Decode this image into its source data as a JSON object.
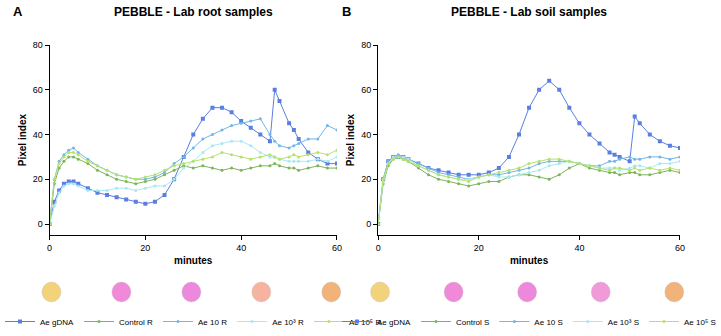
{
  "chart_data": [
    {
      "type": "line",
      "title": "PEBBLE - Lab root samples",
      "annotations": [
        "A"
      ],
      "x_label": "minutes",
      "y_label": "Pixel index",
      "xlim": [
        0,
        60
      ],
      "xticks": [
        0,
        20,
        40,
        60
      ],
      "ylim": [
        -5,
        80
      ],
      "yticks": [
        0,
        20,
        40,
        60,
        80
      ],
      "grid": false,
      "legend": "bottom",
      "x": [
        0,
        1,
        2,
        3,
        4,
        5,
        6,
        8,
        10,
        12,
        14,
        16,
        18,
        20,
        22,
        24,
        26,
        28,
        30,
        32,
        34,
        36,
        38,
        40,
        42,
        44,
        46,
        47,
        48,
        50,
        51,
        52,
        54,
        56,
        58,
        60
      ],
      "series": [
        {
          "name": "Ae gDNA",
          "color": "#5a7fe0",
          "marker": "square",
          "values": [
            0,
            10,
            15,
            18,
            19,
            19,
            18,
            16,
            14,
            13,
            12,
            11,
            10,
            9,
            10,
            13,
            20,
            30,
            40,
            47,
            52,
            52,
            50,
            46,
            43,
            40,
            37,
            60,
            55,
            45,
            42,
            38,
            32,
            29,
            27,
            27
          ]
        },
        {
          "name": "Control R",
          "color": "#7db55a",
          "marker": "circle",
          "values": [
            0,
            18,
            25,
            28,
            30,
            30,
            29,
            27,
            24,
            22,
            20,
            19,
            18,
            19,
            20,
            22,
            24,
            26,
            25,
            26,
            25,
            24,
            25,
            24,
            25,
            26,
            26,
            27,
            26,
            25,
            25,
            24,
            25,
            26,
            25,
            25
          ]
        },
        {
          "name": "Ae 10 R",
          "color": "#72b6e6",
          "marker": "circle",
          "values": [
            0,
            20,
            28,
            31,
            33,
            34,
            32,
            29,
            26,
            24,
            22,
            21,
            20,
            20,
            21,
            23,
            27,
            30,
            34,
            38,
            40,
            42,
            44,
            45,
            46,
            47,
            40,
            37,
            35,
            34,
            35,
            36,
            38,
            38,
            44,
            42
          ]
        },
        {
          "name": "Ae 10³ R",
          "color": "#a9e8f3",
          "marker": "circle",
          "values": [
            0,
            8,
            14,
            17,
            18,
            18,
            17,
            15,
            15,
            15,
            16,
            16,
            15,
            16,
            17,
            17,
            20,
            25,
            28,
            32,
            35,
            36,
            37,
            37,
            35,
            32,
            30,
            30,
            29,
            28,
            28,
            28,
            28,
            29,
            28,
            30
          ]
        },
        {
          "name": "Ae 10⁵ R",
          "color": "#b6e26c",
          "marker": "circle",
          "values": [
            0,
            20,
            27,
            30,
            32,
            32,
            31,
            28,
            26,
            24,
            22,
            21,
            20,
            21,
            22,
            24,
            26,
            27,
            28,
            29,
            30,
            32,
            31,
            30,
            29,
            30,
            31,
            30,
            29,
            30,
            31,
            30,
            31,
            32,
            31,
            33
          ]
        }
      ]
    },
    {
      "type": "line",
      "title": "PEBBLE - Lab soil samples",
      "annotations": [
        "B"
      ],
      "x_label": "minutes",
      "y_label": "Pixel index",
      "xlim": [
        0,
        60
      ],
      "xticks": [
        0,
        20,
        40,
        60
      ],
      "ylim": [
        -5,
        80
      ],
      "yticks": [
        0,
        20,
        40,
        60,
        80
      ],
      "grid": false,
      "legend": "bottom",
      "x": [
        0,
        1,
        2,
        3,
        4,
        5,
        6,
        8,
        10,
        12,
        14,
        16,
        18,
        20,
        22,
        24,
        26,
        28,
        30,
        32,
        34,
        36,
        38,
        40,
        42,
        44,
        46,
        47,
        48,
        50,
        51,
        52,
        54,
        56,
        58,
        60
      ],
      "series": [
        {
          "name": "Ae gDNA",
          "color": "#5a7fe0",
          "marker": "square",
          "values": [
            0,
            20,
            28,
            30,
            30,
            30,
            29,
            27,
            25,
            24,
            23,
            22,
            22,
            22,
            23,
            25,
            30,
            40,
            52,
            60,
            64,
            60,
            52,
            45,
            40,
            36,
            32,
            31,
            30,
            28,
            48,
            45,
            40,
            37,
            35,
            34
          ]
        },
        {
          "name": "Control S",
          "color": "#7db55a",
          "marker": "circle",
          "values": [
            0,
            18,
            26,
            29,
            30,
            29,
            28,
            25,
            22,
            20,
            19,
            18,
            17,
            18,
            19,
            19,
            21,
            22,
            22,
            21,
            20,
            22,
            25,
            27,
            25,
            24,
            23,
            23,
            22,
            23,
            23,
            22,
            22,
            23,
            24,
            23
          ]
        },
        {
          "name": "Ae 10 S",
          "color": "#72b6e6",
          "marker": "circle",
          "values": [
            0,
            20,
            28,
            30,
            31,
            30,
            29,
            27,
            25,
            23,
            22,
            21,
            20,
            21,
            22,
            22,
            23,
            24,
            25,
            27,
            28,
            28,
            28,
            27,
            26,
            26,
            28,
            28,
            29,
            30,
            29,
            29,
            30,
            30,
            29,
            30
          ]
        },
        {
          "name": "Ae 10³ S",
          "color": "#a9e8f3",
          "marker": "circle",
          "values": [
            0,
            19,
            27,
            30,
            30,
            30,
            29,
            26,
            24,
            22,
            21,
            20,
            20,
            21,
            22,
            21,
            21,
            22,
            23,
            24,
            26,
            27,
            28,
            27,
            26,
            25,
            25,
            25,
            24,
            25,
            26,
            26,
            25,
            27,
            27,
            28
          ]
        },
        {
          "name": "Ae 10⁵ S",
          "color": "#b6e26c",
          "marker": "circle",
          "values": [
            0,
            20,
            27,
            29,
            30,
            29,
            28,
            26,
            24,
            22,
            21,
            20,
            19,
            21,
            22,
            23,
            24,
            25,
            27,
            28,
            29,
            29,
            28,
            27,
            26,
            25,
            24,
            25,
            25,
            24,
            25,
            24,
            25,
            24,
            25,
            24
          ]
        }
      ]
    }
  ],
  "tubes": [
    [
      "#f2d27a",
      "#f08ad8",
      "#ee88dc",
      "#f5b3a0",
      "#f2b37a"
    ],
    [
      "#f2d27a",
      "#f08ad8",
      "#ee88dc",
      "#f09ad8",
      "#f2b37a"
    ]
  ]
}
